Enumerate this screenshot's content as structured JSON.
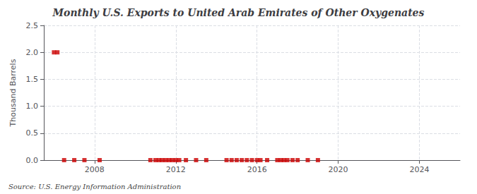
{
  "chart_data": {
    "type": "scatter",
    "title": "Monthly U.S. Exports to United Arab Emirates of Other Oxygenates",
    "ylabel": "Thousand Barrels",
    "source": "Source: U.S. Energy Information Administration",
    "x": [
      2006.0,
      2006.17,
      2006.5,
      2007.0,
      2007.5,
      2008.25,
      2010.75,
      2011.0,
      2011.17,
      2011.33,
      2011.5,
      2011.67,
      2011.83,
      2012.0,
      2012.17,
      2012.5,
      2013.0,
      2013.5,
      2014.5,
      2014.75,
      2015.0,
      2015.25,
      2015.5,
      2015.75,
      2016.0,
      2016.17,
      2016.5,
      2017.0,
      2017.17,
      2017.33,
      2017.5,
      2017.75,
      2018.0,
      2018.5,
      2019.0
    ],
    "values": [
      2.0,
      2.0,
      0.0,
      0.0,
      0.0,
      0.0,
      0.0,
      0.0,
      0.0,
      0.0,
      0.0,
      0.0,
      0.0,
      0.0,
      0.0,
      0.0,
      0.0,
      0.0,
      0.0,
      0.0,
      0.0,
      0.0,
      0.0,
      0.0,
      0.0,
      0.0,
      0.0,
      0.0,
      0.0,
      0.0,
      0.0,
      0.0,
      0.0,
      0.0,
      0.0
    ],
    "color": "#cc0000",
    "marker": "square",
    "xlim": [
      2005.5,
      2026.0
    ],
    "xticks": [
      2008,
      2012,
      2016,
      2020,
      2024
    ],
    "ylim": [
      0,
      2.5
    ],
    "yticks": [
      {
        "value": 0,
        "label": "0.0"
      },
      0.5,
      {
        "value": 1,
        "label": "1.0"
      },
      1.5,
      {
        "value": 2,
        "label": "2.0"
      },
      2.5
    ],
    "grid": true
  }
}
